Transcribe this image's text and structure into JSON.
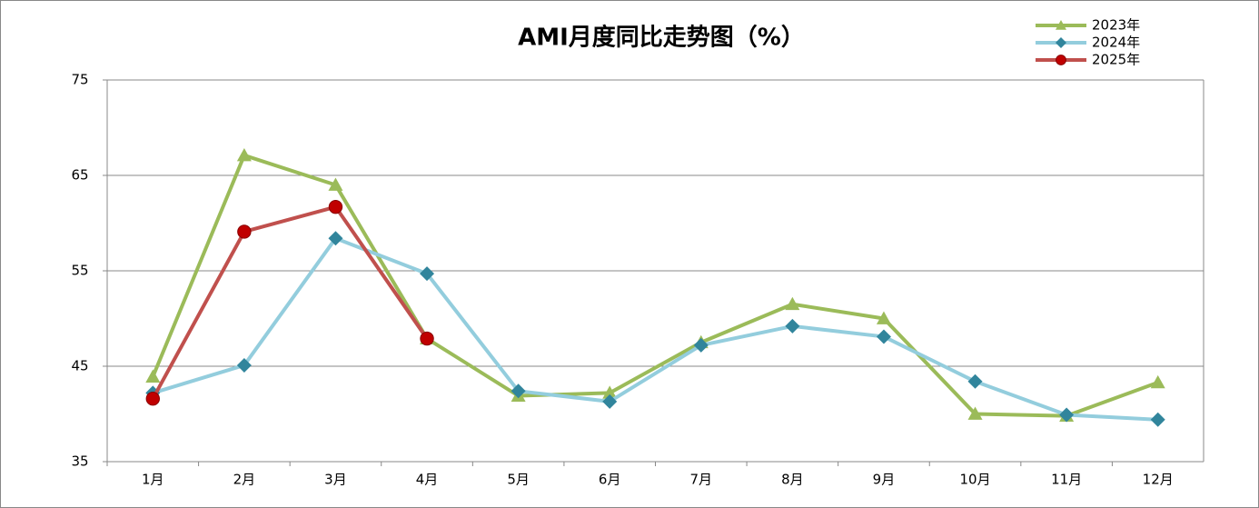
{
  "chart_data": {
    "type": "line",
    "title": "AMI月度同比走势图（%）",
    "categories": [
      "1月",
      "2月",
      "3月",
      "4月",
      "5月",
      "6月",
      "7月",
      "8月",
      "9月",
      "10月",
      "11月",
      "12月"
    ],
    "series": [
      {
        "name": "2023年",
        "color": "#9bbb59",
        "marker": "triangle",
        "marker_color": "#9bbb59",
        "values": [
          43.9,
          67.1,
          64.0,
          47.9,
          41.9,
          42.2,
          47.5,
          51.5,
          50.0,
          40.0,
          39.8,
          43.3
        ]
      },
      {
        "name": "2024年",
        "color": "#93cddd",
        "marker": "diamond",
        "marker_color": "#31859c",
        "values": [
          42.2,
          45.1,
          58.4,
          54.7,
          42.4,
          41.3,
          47.2,
          49.2,
          48.1,
          43.4,
          39.9,
          39.4
        ]
      },
      {
        "name": "2025年",
        "color": "#c0504d",
        "marker": "circle",
        "marker_color": "#c00000",
        "values": [
          41.6,
          59.1,
          61.7,
          47.9,
          null,
          null,
          null,
          null,
          null,
          null,
          null,
          null
        ]
      }
    ],
    "ylim": [
      35,
      75
    ],
    "yticks": [
      35,
      45,
      55,
      65,
      75
    ],
    "grid": true,
    "legend": "top-right"
  }
}
